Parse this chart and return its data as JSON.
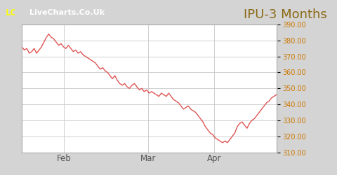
{
  "title": "IPU-3 Months",
  "title_color": "#8B6914",
  "title_fontsize": 13,
  "bg_color": "#d4d4d4",
  "plot_bg_color": "#ffffff",
  "line_color": "#e05555",
  "grid_color": "#c8c8c8",
  "ylabel_color": "#cc7700",
  "xlabel_color": "#555555",
  "ylim": [
    310.0,
    390.0
  ],
  "yticks": [
    310.0,
    320.0,
    330.0,
    340.0,
    350.0,
    360.0,
    370.0,
    380.0,
    390.0
  ],
  "xtick_labels": [
    "Feb",
    "Mar",
    "Apr"
  ],
  "xtick_positions": [
    0.165,
    0.495,
    0.755
  ],
  "prices": [
    376,
    374,
    375,
    372,
    373,
    375,
    372,
    374,
    376,
    379,
    382,
    384,
    382,
    381,
    379,
    377,
    378,
    376,
    375,
    377,
    375,
    373,
    374,
    372,
    373,
    371,
    370,
    369,
    368,
    367,
    366,
    364,
    362,
    363,
    361,
    360,
    358,
    356,
    358,
    355,
    353,
    352,
    353,
    351,
    350,
    352,
    353,
    351,
    349,
    350,
    348,
    349,
    347,
    348,
    347,
    346,
    345,
    347,
    346,
    345,
    347,
    345,
    343,
    342,
    341,
    339,
    337,
    338,
    339,
    337,
    336,
    335,
    333,
    331,
    329,
    326,
    324,
    322,
    321,
    319,
    318,
    317,
    316,
    317,
    316,
    318,
    320,
    322,
    326,
    328,
    329,
    327,
    325,
    328,
    330,
    331,
    333,
    335,
    337,
    339,
    341,
    342,
    344,
    345,
    346
  ]
}
